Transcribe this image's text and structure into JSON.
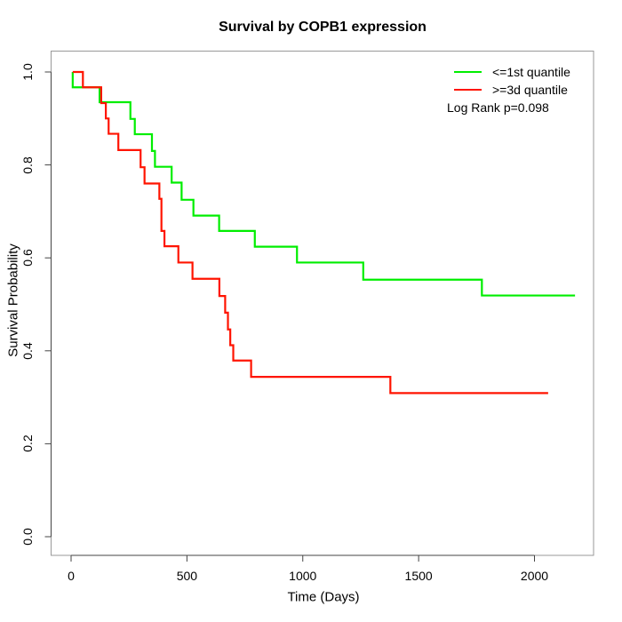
{
  "title": "Survival by COPB1 expression",
  "xlabel": "Time (Days)",
  "ylabel": "Survival Probability",
  "legend": {
    "items": [
      {
        "label": "<=1st quantile",
        "color": "#00ee00"
      },
      {
        "label": ">=3d quantile",
        "color": "#ff1400"
      }
    ],
    "note": "Log Rank p=0.098"
  },
  "axis": {
    "x_tick_labels": [
      "0",
      "500",
      "1000",
      "1500",
      "2000"
    ],
    "y_tick_labels": [
      "0.0",
      "0.2",
      "0.4",
      "0.6",
      "0.8",
      "1.0"
    ]
  },
  "chart_data": {
    "type": "line",
    "subtype": "kaplan_meier_step",
    "title": "Survival by COPB1 expression",
    "xlabel": "Time (Days)",
    "ylabel": "Survival Probability",
    "xlim": [
      0,
      2250
    ],
    "ylim": [
      0.0,
      1.0
    ],
    "x_ticks": [
      0,
      500,
      1000,
      1500,
      2000
    ],
    "y_ticks": [
      0.0,
      0.2,
      0.4,
      0.6,
      0.8,
      1.0
    ],
    "grid": false,
    "legend_position": "top-right",
    "annotation": "Log Rank p=0.098",
    "series": [
      {
        "name": "<=1st quantile",
        "color": "#00ee00",
        "start": [
          7,
          1.0
        ],
        "drops": [
          [
            7,
            0.967
          ],
          [
            123,
            0.935
          ],
          [
            256,
            0.899
          ],
          [
            275,
            0.866
          ],
          [
            349,
            0.83
          ],
          [
            362,
            0.796
          ],
          [
            434,
            0.762
          ],
          [
            477,
            0.725
          ],
          [
            528,
            0.691
          ],
          [
            639,
            0.658
          ],
          [
            793,
            0.624
          ],
          [
            975,
            0.59
          ],
          [
            1261,
            0.553
          ],
          [
            1773,
            0.519
          ]
        ],
        "end_time": 2175
      },
      {
        "name": ">=3d quantile",
        "color": "#ff1400",
        "start": [
          7,
          1.0
        ],
        "drops": [
          [
            51,
            0.967
          ],
          [
            130,
            0.933
          ],
          [
            150,
            0.9
          ],
          [
            162,
            0.867
          ],
          [
            204,
            0.832
          ],
          [
            300,
            0.795
          ],
          [
            317,
            0.76
          ],
          [
            381,
            0.727
          ],
          [
            390,
            0.658
          ],
          [
            403,
            0.625
          ],
          [
            463,
            0.59
          ],
          [
            524,
            0.555
          ],
          [
            640,
            0.518
          ],
          [
            665,
            0.482
          ],
          [
            677,
            0.446
          ],
          [
            687,
            0.412
          ],
          [
            700,
            0.379
          ],
          [
            777,
            0.344
          ],
          [
            1378,
            0.309
          ]
        ],
        "end_time": 2059
      }
    ]
  }
}
